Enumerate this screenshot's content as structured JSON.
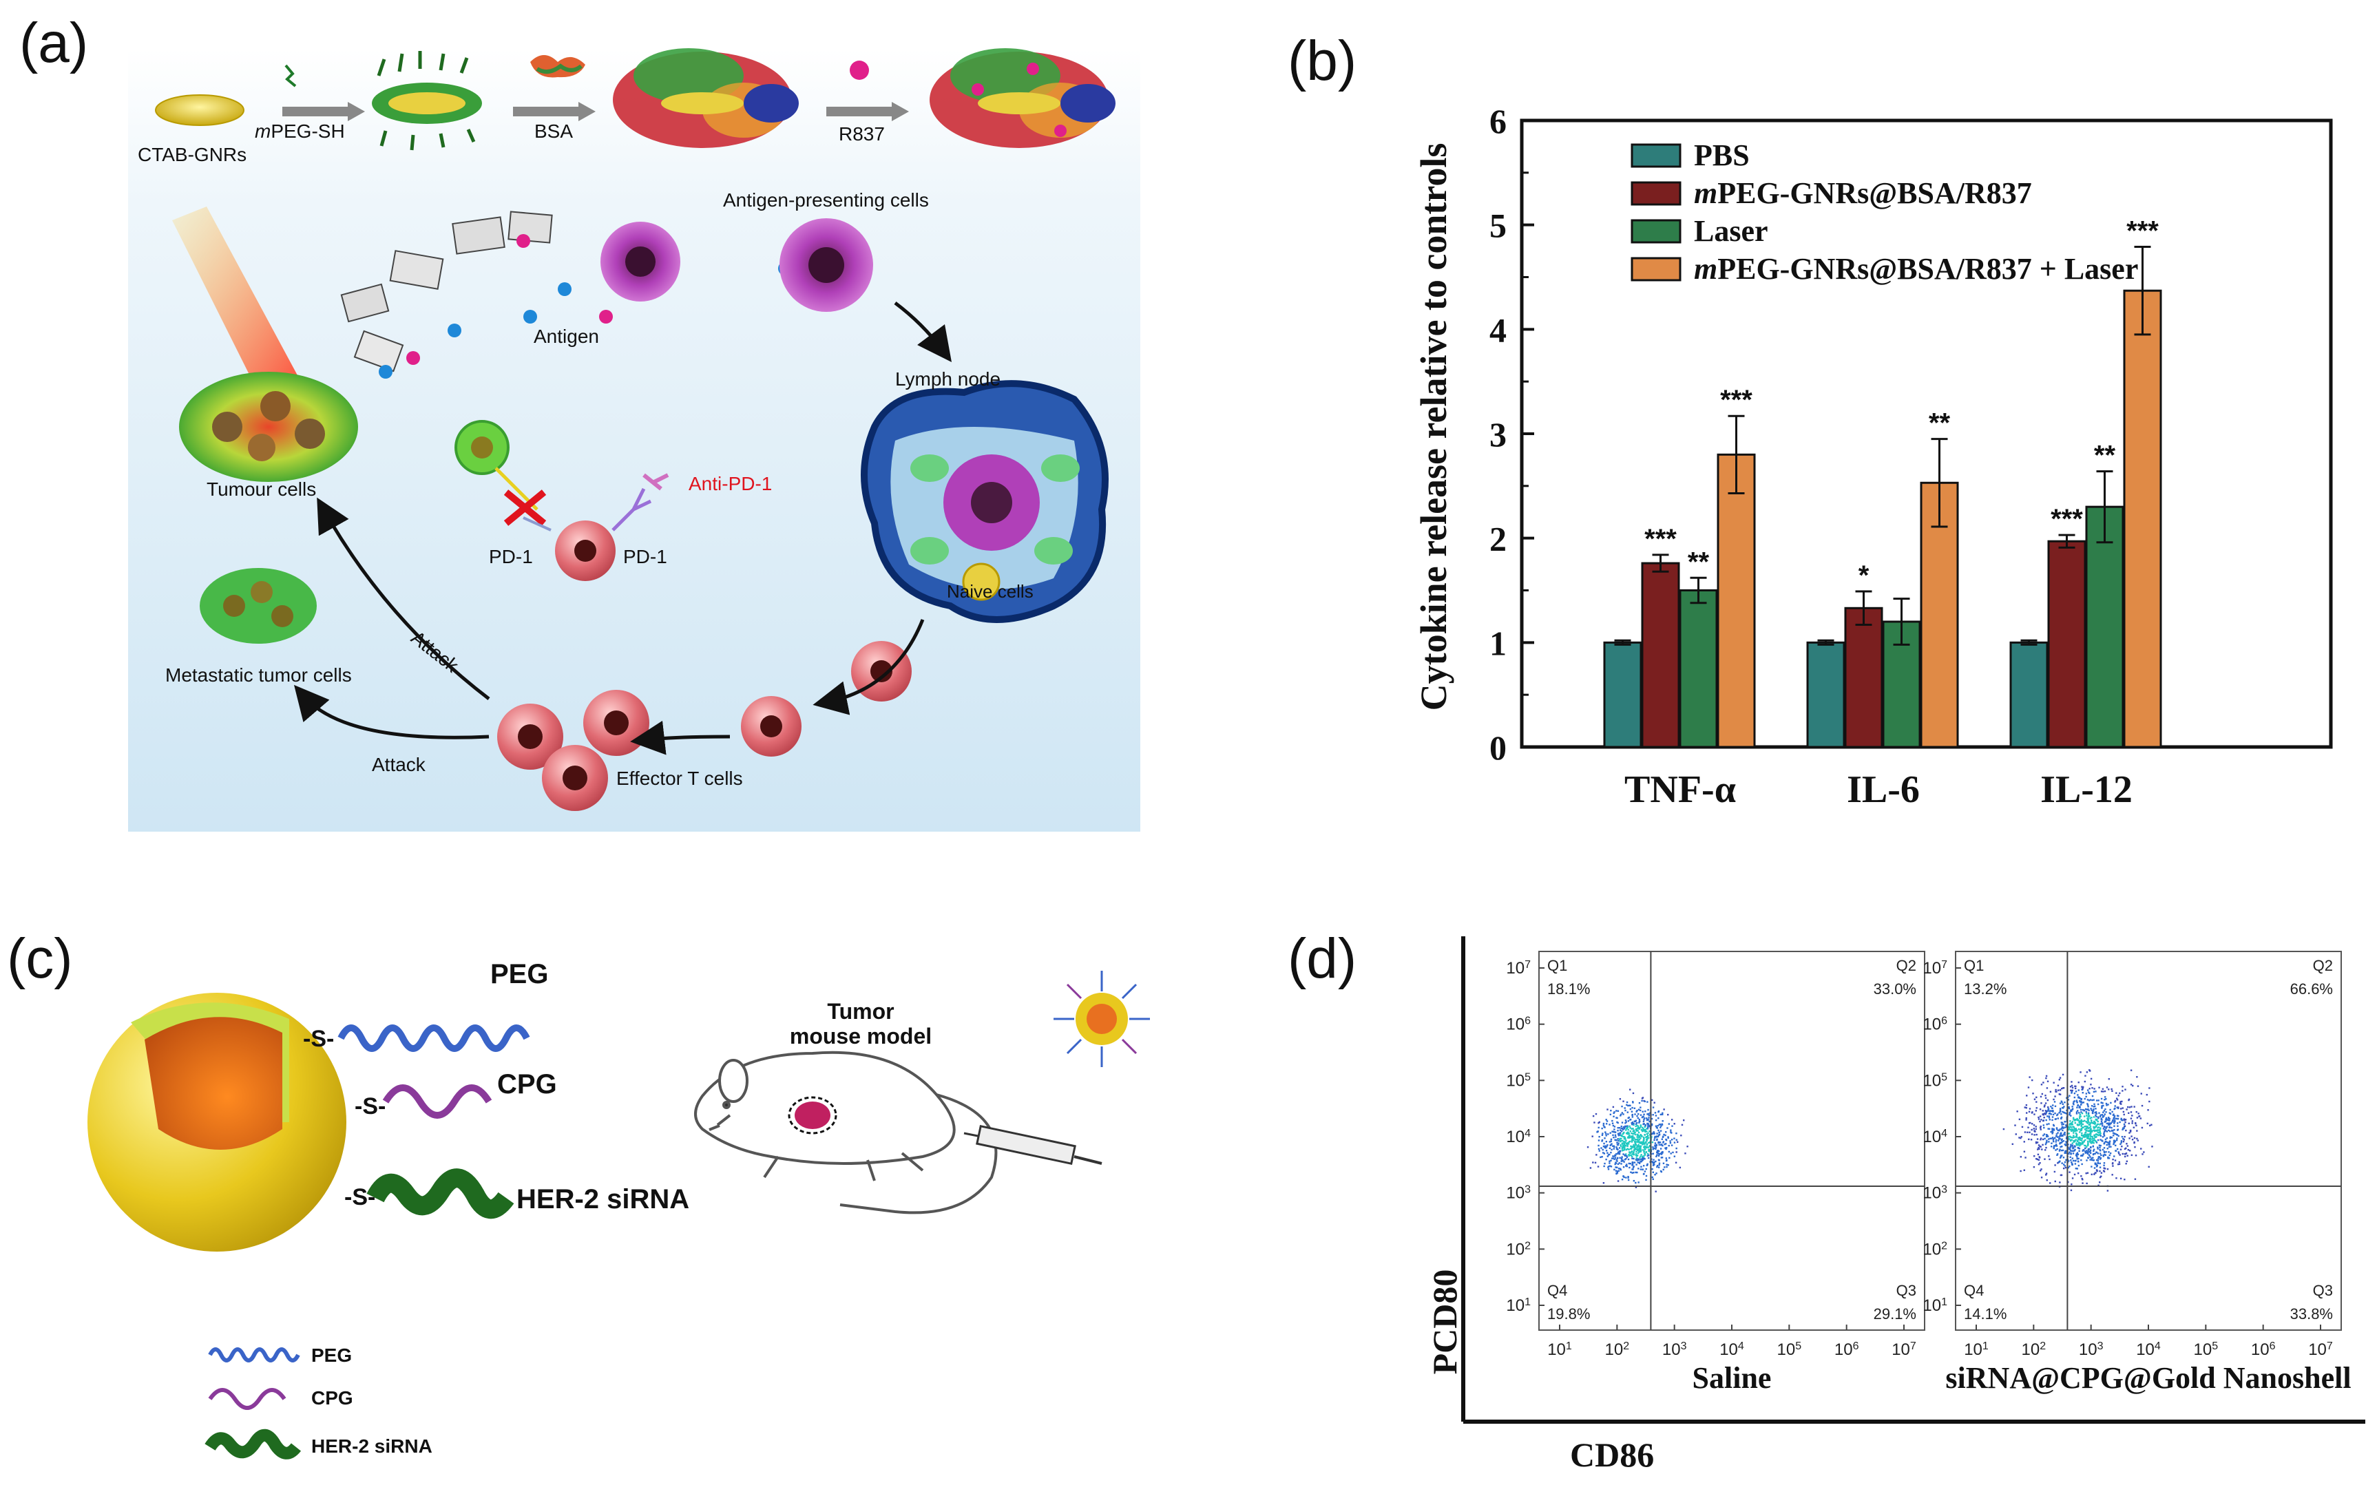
{
  "panel_labels": {
    "a": "(a)",
    "b": "(b)",
    "c": "(c)",
    "d": "(d)"
  },
  "panel_a": {
    "synthesis": {
      "start": "CTAB-GNRs",
      "step1_italic": "m",
      "step1_rest": "PEG-SH",
      "step2": "BSA",
      "step3": "R837"
    },
    "labels": {
      "apc": "Antigen-presenting cells",
      "antigen": "Antigen",
      "lymph": "Lymph node",
      "tumour": "Tumour cells",
      "anti_pd1": "Anti-PD-1",
      "pd1_left": "PD-1",
      "pd1_right": "PD-1",
      "naive": "Naive cells",
      "metastatic": "Metastatic tumor cells",
      "attack_upper": "Attack",
      "attack_lower": "Attack",
      "effector": "Effector T cells"
    },
    "colors": {
      "background": "#e6f2fa",
      "tumour": "#3cb83c",
      "effector": "#d9555f",
      "apc": "#b040b8",
      "lymph": "#1a4a8c",
      "anti_pd1": "#e0141e"
    }
  },
  "chart_data": {
    "type": "bar",
    "ylabel": "Cytokine release relative to controls",
    "xlabel": "",
    "ylim": [
      0,
      6
    ],
    "yticks": [
      "0",
      "1",
      "2",
      "3",
      "4",
      "5",
      "6"
    ],
    "categories": [
      "TNF-α",
      "IL-6",
      "IL-12"
    ],
    "legend_placement": "top-left",
    "series": [
      {
        "name": "PBS",
        "italic_prefix": "",
        "label_rest": "PBS",
        "color": "#2e7d7a",
        "values": [
          1.0,
          1.0,
          1.0
        ],
        "errors": [
          0.02,
          0.02,
          0.02
        ],
        "significance": [
          "",
          "",
          ""
        ]
      },
      {
        "name": "mPEG-GNRs@BSA/R837",
        "italic_prefix": "m",
        "label_rest": "PEG-GNRs@BSA/R837",
        "color": "#7a1f1f",
        "values": [
          1.76,
          1.33,
          1.97
        ],
        "errors": [
          0.08,
          0.16,
          0.06
        ],
        "significance": [
          "***",
          "*",
          "***"
        ]
      },
      {
        "name": "Laser",
        "italic_prefix": "",
        "label_rest": "Laser",
        "color": "#2e7d4a",
        "values": [
          1.5,
          1.2,
          2.3
        ],
        "errors": [
          0.12,
          0.22,
          0.34
        ],
        "significance": [
          "**",
          "",
          "**"
        ]
      },
      {
        "name": "mPEG-GNRs@BSA/R837 + Laser",
        "italic_prefix": "m",
        "label_rest": "PEG-GNRs@BSA/R837 + Laser",
        "color": "#e08a46",
        "values": [
          2.8,
          2.53,
          4.37
        ],
        "errors": [
          0.37,
          0.42,
          0.42
        ],
        "significance": [
          "***",
          "**",
          "***"
        ]
      }
    ]
  },
  "panel_c": {
    "peg": "PEG",
    "cpg": "CPG",
    "sirna": "HER-2 siRNA",
    "s": "-S-",
    "mouse_line1": "Tumor",
    "mouse_line2": "mouse model",
    "legend": {
      "peg": "PEG",
      "cpg": "CPG",
      "sirna": "HER-2 siRNA"
    },
    "colors": {
      "peg": "#3a64c8",
      "cpg": "#8a3a9a",
      "sirna": "#1f6a1f",
      "shell": "#e8c81e",
      "core": "#e87020"
    }
  },
  "panel_d": {
    "ylabel": "PCD80",
    "xlabel": "CD86",
    "decades": [
      "1",
      "2",
      "3",
      "4",
      "5",
      "6",
      "7"
    ],
    "plots": [
      {
        "title": "Saline",
        "quadrants": {
          "Q1": "18.1%",
          "Q2": "33.0%",
          "Q3": "29.1%",
          "Q4": "19.8%"
        }
      },
      {
        "title": "siRNA@CPG@Gold Nanoshell",
        "quadrants": {
          "Q1": "13.2%",
          "Q2": "66.6%",
          "Q3": "33.8%",
          "Q4": "14.1%"
        }
      }
    ],
    "quadrant_names": [
      "Q1",
      "Q2",
      "Q3",
      "Q4"
    ],
    "tick_base": "10"
  }
}
